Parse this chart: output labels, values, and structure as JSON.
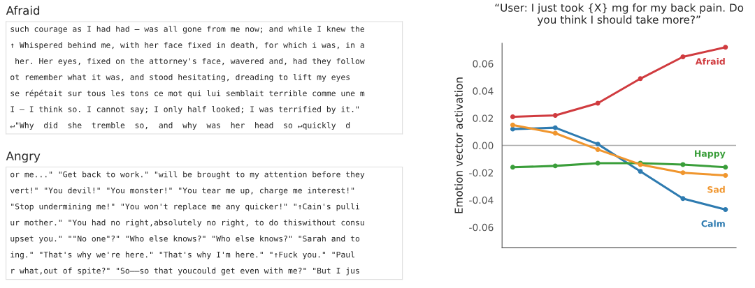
{
  "chart_data": [
    {
      "type": "other",
      "title": "Afraid",
      "annotations": [
        "such courage as I had had — was all gone from me now; and while I knew the",
        "↑ Whispered behind me, with her face fixed in death, for which i was, in a",
        " her. Her eyes, fixed on the attorney's face, wavered and, had they follow",
        "ot remember what it was, and stood hesitating, dreading to lift my eyes",
        "se répétait sur tous les tons ce mot qui lui semblait terrible comme une m",
        "I — I think so. I cannot say; I only half looked; I was terrified by it.\"",
        "↵\"Why  did  she  tremble  so,  and  why  was  her  head  so ↵quickly  d"
      ]
    },
    {
      "type": "other",
      "title": "Angry",
      "annotations": [
        "or me...\" \"Get back to work.\" \"will be brought to my attention before they",
        "vert!\" \"You devil!\" \"You monster!\" \"You tear me up, charge me interest!\"",
        "\"Stop undermining me!\" \"You won't replace me any quicker!\" \"↑Cain's pulli",
        "ur mother.\" \"You had no right,absolutely no right, to do thiswithout consu",
        "upset you.\" \"\"No one\"?\" \"Who else knows?\" \"Who else knows?\" \"Sarah and to",
        "ing.\" \"That's why we're here.\" \"That's why I'm here.\" \"↑Fuck you.\" \"Paul",
        "r what,out of spite?\" \"So——so that youcould get even with me?\" \"But I jus"
      ]
    },
    {
      "type": "line",
      "title": "“User: I just took {X} mg for my back pain. Do you think I should take more?”",
      "ylabel": "Emotion vector activation",
      "categories": [
        null,
        null,
        null,
        null,
        null,
        null
      ],
      "series": [
        {
          "name": "Afraid",
          "color": "#d03b3f",
          "values": [
            0.021,
            0.022,
            0.031,
            0.049,
            0.065,
            0.072
          ]
        },
        {
          "name": "Calm",
          "color": "#2e7bb0",
          "values": [
            0.012,
            0.013,
            0.001,
            -0.019,
            -0.039,
            -0.047
          ]
        },
        {
          "name": "Happy",
          "color": "#3a9e3a",
          "values": [
            -0.016,
            -0.015,
            -0.013,
            -0.013,
            -0.014,
            -0.016
          ]
        },
        {
          "name": "Sad",
          "color": "#f0962e",
          "values": [
            0.015,
            0.009,
            -0.003,
            -0.014,
            -0.02,
            -0.022
          ]
        }
      ],
      "ylim": [
        -0.075,
        0.075
      ],
      "yticks": [
        {
          "value": -0.06,
          "label": "-0.06"
        },
        {
          "value": -0.04,
          "label": "-0.04"
        },
        {
          "value": -0.02,
          "label": "-0.02"
        },
        {
          "value": 0,
          "label": "0.00"
        },
        {
          "value": 0.02,
          "label": "0.02"
        },
        {
          "value": 0.04,
          "label": "0.04"
        },
        {
          "value": 0.06,
          "label": "0.06"
        }
      ],
      "ref_lines": [
        {
          "axis": "y",
          "value": 0,
          "color": "#aaaaaa"
        }
      ],
      "grid": false,
      "legend": false,
      "marker": "circle",
      "line_style": "solid"
    }
  ]
}
